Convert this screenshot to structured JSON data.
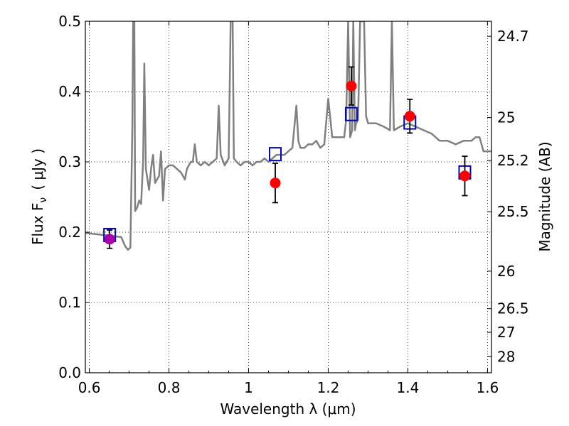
{
  "chart_data": {
    "type": "line",
    "xlabel": "Wavelength  λ (μm)",
    "ylabel": "Flux  F",
    "ylabel_sub": "ν",
    "ylabel_unit": "( μJy )",
    "y2label": "Magnitude (AB)",
    "xlim": [
      0.59,
      1.61
    ],
    "ylim": [
      0.0,
      0.5
    ],
    "x_ticks": [
      0.6,
      0.8,
      1.0,
      1.2,
      1.4,
      1.6
    ],
    "x_tick_labels": [
      "0.6",
      "0.8",
      "1",
      "1.2",
      "1.4",
      "1.6"
    ],
    "y_ticks": [
      0.0,
      0.1,
      0.2,
      0.3,
      0.4,
      0.5
    ],
    "y_tick_labels": [
      "0.0",
      "0.1",
      "0.2",
      "0.3",
      "0.4",
      "0.5"
    ],
    "mag_ticks": [
      24.7,
      25,
      25.2,
      25.5,
      26,
      26.5,
      27,
      28
    ],
    "mag_tick_labels": [
      "24.7",
      "25",
      "25.2",
      "25.5",
      "26",
      "26.5",
      "27",
      "28"
    ],
    "grid": true,
    "series": [
      {
        "kind": "line",
        "color": "#808080",
        "points": [
          [
            0.59,
            0.199
          ],
          [
            0.62,
            0.197
          ],
          [
            0.65,
            0.195
          ],
          [
            0.68,
            0.193
          ],
          [
            0.69,
            0.18
          ],
          [
            0.697,
            0.175
          ],
          [
            0.703,
            0.178
          ],
          [
            0.708,
            0.35
          ],
          [
            0.71,
            0.5
          ],
          [
            0.713,
            0.5
          ],
          [
            0.715,
            0.23
          ],
          [
            0.72,
            0.235
          ],
          [
            0.725,
            0.245
          ],
          [
            0.73,
            0.24
          ],
          [
            0.735,
            0.3
          ],
          [
            0.738,
            0.44
          ],
          [
            0.742,
            0.29
          ],
          [
            0.75,
            0.26
          ],
          [
            0.755,
            0.29
          ],
          [
            0.76,
            0.31
          ],
          [
            0.765,
            0.27
          ],
          [
            0.77,
            0.275
          ],
          [
            0.775,
            0.28
          ],
          [
            0.78,
            0.315
          ],
          [
            0.785,
            0.245
          ],
          [
            0.79,
            0.29
          ],
          [
            0.8,
            0.295
          ],
          [
            0.81,
            0.295
          ],
          [
            0.82,
            0.29
          ],
          [
            0.83,
            0.285
          ],
          [
            0.84,
            0.275
          ],
          [
            0.845,
            0.29
          ],
          [
            0.85,
            0.295
          ],
          [
            0.855,
            0.3
          ],
          [
            0.86,
            0.3
          ],
          [
            0.865,
            0.325
          ],
          [
            0.87,
            0.3
          ],
          [
            0.88,
            0.295
          ],
          [
            0.89,
            0.3
          ],
          [
            0.9,
            0.295
          ],
          [
            0.91,
            0.3
          ],
          [
            0.92,
            0.305
          ],
          [
            0.925,
            0.38
          ],
          [
            0.93,
            0.31
          ],
          [
            0.94,
            0.295
          ],
          [
            0.95,
            0.305
          ],
          [
            0.955,
            0.5
          ],
          [
            0.96,
            0.5
          ],
          [
            0.963,
            0.305
          ],
          [
            0.97,
            0.3
          ],
          [
            0.98,
            0.295
          ],
          [
            0.99,
            0.3
          ],
          [
            1.0,
            0.3
          ],
          [
            1.01,
            0.295
          ],
          [
            1.02,
            0.3
          ],
          [
            1.03,
            0.3
          ],
          [
            1.04,
            0.305
          ],
          [
            1.05,
            0.3
          ],
          [
            1.06,
            0.305
          ],
          [
            1.07,
            0.31
          ],
          [
            1.08,
            0.31
          ],
          [
            1.09,
            0.31
          ],
          [
            1.1,
            0.315
          ],
          [
            1.11,
            0.32
          ],
          [
            1.12,
            0.38
          ],
          [
            1.125,
            0.33
          ],
          [
            1.13,
            0.32
          ],
          [
            1.14,
            0.32
          ],
          [
            1.15,
            0.325
          ],
          [
            1.16,
            0.325
          ],
          [
            1.17,
            0.33
          ],
          [
            1.18,
            0.32
          ],
          [
            1.19,
            0.325
          ],
          [
            1.2,
            0.39
          ],
          [
            1.21,
            0.335
          ],
          [
            1.22,
            0.335
          ],
          [
            1.23,
            0.335
          ],
          [
            1.24,
            0.335
          ],
          [
            1.245,
            0.36
          ],
          [
            1.25,
            0.5
          ],
          [
            1.255,
            0.335
          ],
          [
            1.26,
            0.345
          ],
          [
            1.263,
            0.5
          ],
          [
            1.267,
            0.345
          ],
          [
            1.27,
            0.355
          ],
          [
            1.275,
            0.36
          ],
          [
            1.28,
            0.5
          ],
          [
            1.285,
            0.5
          ],
          [
            1.29,
            0.5
          ],
          [
            1.295,
            0.365
          ],
          [
            1.3,
            0.355
          ],
          [
            1.32,
            0.355
          ],
          [
            1.34,
            0.35
          ],
          [
            1.355,
            0.345
          ],
          [
            1.36,
            0.5
          ],
          [
            1.365,
            0.345
          ],
          [
            1.38,
            0.35
          ],
          [
            1.4,
            0.355
          ],
          [
            1.42,
            0.35
          ],
          [
            1.44,
            0.345
          ],
          [
            1.46,
            0.34
          ],
          [
            1.48,
            0.33
          ],
          [
            1.5,
            0.33
          ],
          [
            1.52,
            0.325
          ],
          [
            1.54,
            0.33
          ],
          [
            1.56,
            0.33
          ],
          [
            1.57,
            0.335
          ],
          [
            1.58,
            0.335
          ],
          [
            1.59,
            0.315
          ],
          [
            1.61,
            0.315
          ]
        ]
      },
      {
        "kind": "scatter",
        "marker": "circle",
        "color": "#ff0000",
        "points": [
          [
            1.067,
            0.27,
            0.028
          ],
          [
            1.258,
            0.408,
            0.027
          ],
          [
            1.405,
            0.365,
            0.024
          ],
          [
            1.543,
            0.28,
            0.028
          ]
        ]
      },
      {
        "kind": "scatter",
        "marker": "circle",
        "color": "#aa00aa",
        "points": [
          [
            0.651,
            0.19,
            0.013
          ]
        ]
      },
      {
        "kind": "scatter",
        "marker": "square",
        "color": "#0000cc",
        "points": [
          [
            0.651,
            0.196
          ],
          [
            1.067,
            0.311
          ],
          [
            1.258,
            0.368
          ],
          [
            1.405,
            0.356
          ],
          [
            1.543,
            0.285
          ]
        ]
      }
    ]
  }
}
